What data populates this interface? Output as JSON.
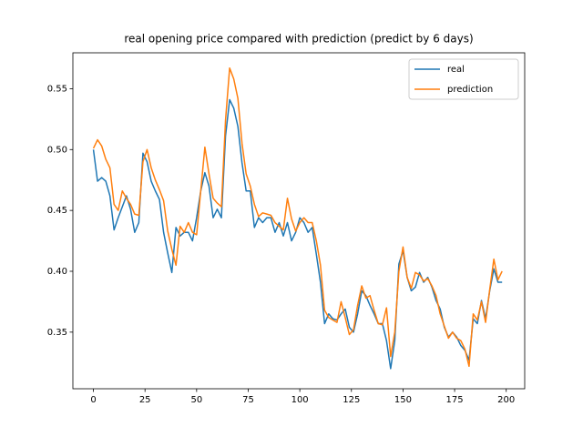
{
  "chart_data": {
    "type": "line",
    "title": "real opening price compared with prediction (predict by 6 days)",
    "x": [
      0,
      2,
      4,
      6,
      8,
      10,
      12,
      14,
      16,
      18,
      20,
      22,
      24,
      26,
      28,
      30,
      32,
      34,
      36,
      38,
      40,
      42,
      44,
      46,
      48,
      50,
      52,
      54,
      56,
      58,
      60,
      62,
      64,
      66,
      68,
      70,
      72,
      74,
      76,
      78,
      80,
      82,
      84,
      86,
      88,
      90,
      92,
      94,
      96,
      98,
      100,
      102,
      104,
      106,
      108,
      110,
      112,
      114,
      116,
      118,
      120,
      122,
      124,
      126,
      128,
      130,
      132,
      134,
      136,
      138,
      140,
      142,
      144,
      146,
      148,
      150,
      152,
      154,
      156,
      158,
      160,
      162,
      164,
      166,
      168,
      170,
      172,
      174,
      176,
      178,
      180,
      182,
      184,
      186,
      188,
      190,
      192,
      194,
      196,
      198
    ],
    "series": [
      {
        "name": "real",
        "color": "#1f77b4",
        "values": [
          0.5,
          0.474,
          0.477,
          0.474,
          0.462,
          0.434,
          0.444,
          0.453,
          0.462,
          0.451,
          0.432,
          0.44,
          0.497,
          0.49,
          0.474,
          0.466,
          0.459,
          0.432,
          0.415,
          0.399,
          0.436,
          0.429,
          0.432,
          0.432,
          0.425,
          0.444,
          0.466,
          0.481,
          0.47,
          0.444,
          0.451,
          0.444,
          0.511,
          0.541,
          0.534,
          0.519,
          0.489,
          0.466,
          0.466,
          0.436,
          0.444,
          0.44,
          0.444,
          0.444,
          0.432,
          0.44,
          0.429,
          0.44,
          0.425,
          0.432,
          0.444,
          0.44,
          0.432,
          0.436,
          0.414,
          0.391,
          0.357,
          0.365,
          0.361,
          0.36,
          0.365,
          0.369,
          0.354,
          0.35,
          0.365,
          0.384,
          0.38,
          0.372,
          0.365,
          0.357,
          0.357,
          0.343,
          0.32,
          0.343,
          0.406,
          0.417,
          0.395,
          0.384,
          0.387,
          0.399,
          0.391,
          0.395,
          0.387,
          0.376,
          0.369,
          0.354,
          0.346,
          0.35,
          0.346,
          0.339,
          0.335,
          0.327,
          0.361,
          0.357,
          0.376,
          0.361,
          0.384,
          0.402,
          0.391,
          0.391
        ]
      },
      {
        "name": "prediction",
        "color": "#ff7f0e",
        "values": [
          0.501,
          0.508,
          0.503,
          0.492,
          0.485,
          0.455,
          0.45,
          0.466,
          0.46,
          0.455,
          0.447,
          0.446,
          0.49,
          0.5,
          0.485,
          0.475,
          0.467,
          0.458,
          0.433,
          0.418,
          0.405,
          0.437,
          0.432,
          0.44,
          0.432,
          0.43,
          0.466,
          0.502,
          0.48,
          0.46,
          0.456,
          0.453,
          0.524,
          0.567,
          0.558,
          0.542,
          0.505,
          0.48,
          0.47,
          0.455,
          0.445,
          0.448,
          0.447,
          0.446,
          0.44,
          0.437,
          0.434,
          0.46,
          0.443,
          0.433,
          0.44,
          0.444,
          0.44,
          0.44,
          0.425,
          0.405,
          0.368,
          0.362,
          0.36,
          0.358,
          0.375,
          0.362,
          0.348,
          0.352,
          0.372,
          0.388,
          0.378,
          0.38,
          0.368,
          0.357,
          0.356,
          0.37,
          0.33,
          0.35,
          0.4,
          0.42,
          0.395,
          0.386,
          0.399,
          0.397,
          0.392,
          0.394,
          0.388,
          0.38,
          0.365,
          0.355,
          0.345,
          0.35,
          0.345,
          0.343,
          0.336,
          0.322,
          0.365,
          0.36,
          0.375,
          0.358,
          0.385,
          0.41,
          0.393,
          0.4
        ]
      }
    ],
    "xlim": [
      -9.95,
      208.95
    ],
    "ylim": [
      0.3035,
      0.5795
    ],
    "xticks": [
      0,
      25,
      50,
      75,
      100,
      125,
      150,
      175,
      200
    ],
    "yticks": [
      0.35,
      {
        "value": 0.4,
        "label": "0.40"
      },
      0.45,
      {
        "value": 0.5,
        "label": "0.50"
      },
      0.55
    ],
    "legend": "upper right"
  }
}
